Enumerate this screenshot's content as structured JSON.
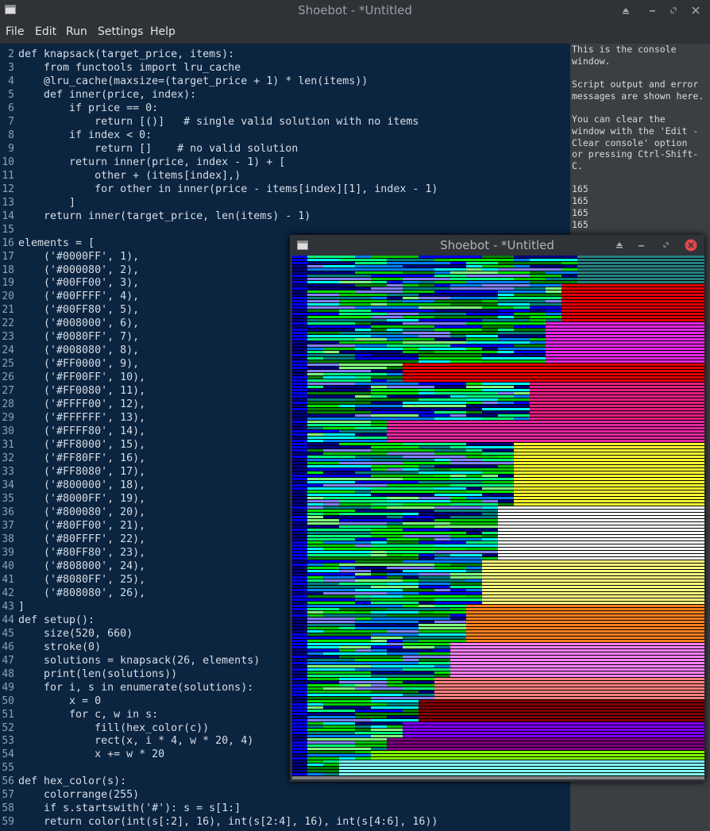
{
  "window": {
    "title": "Shoebot - *Untitled"
  },
  "menu": [
    "File",
    "Edit",
    "Run",
    "Settings",
    "Help"
  ],
  "editor": {
    "lines": [
      {
        "number": 2,
        "text": "def knapsack(target_price, items):"
      },
      {
        "number": 3,
        "text": "    from functools import lru_cache"
      },
      {
        "number": 4,
        "text": "    @lru_cache(maxsize=(target_price + 1) * len(items))"
      },
      {
        "number": 5,
        "text": "    def inner(price, index):"
      },
      {
        "number": 6,
        "text": "        if price == 0:"
      },
      {
        "number": 7,
        "text": "            return [()]   # single valid solution with no items"
      },
      {
        "number": 8,
        "text": "        if index < 0:"
      },
      {
        "number": 9,
        "text": "            return []    # no valid solution"
      },
      {
        "number": 10,
        "text": "        return inner(price, index - 1) + ["
      },
      {
        "number": 11,
        "text": "            other + (items[index],)"
      },
      {
        "number": 12,
        "text": "            for other in inner(price - items[index][1], index - 1)"
      },
      {
        "number": 13,
        "text": "        ]"
      },
      {
        "number": 14,
        "text": "    return inner(target_price, len(items) - 1)"
      },
      {
        "number": 15
      },
      {
        "number": 16,
        "text": "elements = ["
      },
      {
        "number": 17,
        "text": "    ('#0000FF', 1),"
      },
      {
        "number": 18,
        "text": "    ('#000080', 2),"
      },
      {
        "number": 19,
        "text": "    ('#00FF00', 3),"
      },
      {
        "number": 20,
        "text": "    ('#00FFFF', 4),"
      },
      {
        "number": 21,
        "text": "    ('#00FF80', 5),"
      },
      {
        "number": 22,
        "text": "    ('#008000', 6),"
      },
      {
        "number": 23,
        "text": "    ('#0080FF', 7),"
      },
      {
        "number": 24,
        "text": "    ('#008080', 8),"
      },
      {
        "number": 25,
        "text": "    ('#FF0000', 9),"
      },
      {
        "number": 26,
        "text": "    ('#FF00FF', 10),"
      },
      {
        "number": 27,
        "text": "    ('#FF0080', 11),"
      },
      {
        "number": 28,
        "text": "    ('#FFFF00', 12),"
      },
      {
        "number": 29,
        "text": "    ('#FFFFFF', 13),"
      },
      {
        "number": 30,
        "text": "    ('#FFFF80', 14),"
      },
      {
        "number": 31,
        "text": "    ('#FF8000', 15),"
      },
      {
        "number": 32,
        "text": "    ('#FF80FF', 16),"
      },
      {
        "number": 33,
        "text": "    ('#FF8080', 17),"
      },
      {
        "number": 34,
        "text": "    ('#800000', 18),"
      },
      {
        "number": 35,
        "text": "    ('#8000FF', 19),"
      },
      {
        "number": 36,
        "text": "    ('#800080', 20),"
      },
      {
        "number": 37,
        "text": "    ('#80FF00', 21),"
      },
      {
        "number": 38,
        "text": "    ('#80FFFF', 22),"
      },
      {
        "number": 39,
        "text": "    ('#80FF80', 23),"
      },
      {
        "number": 40,
        "text": "    ('#808000', 24),"
      },
      {
        "number": 41,
        "text": "    ('#8080FF', 25),"
      },
      {
        "number": 42,
        "text": "    ('#808080', 26),"
      },
      {
        "number": 43,
        "text": "]"
      },
      {
        "number": 44,
        "text": "def setup():"
      },
      {
        "number": 45,
        "text": "    size(520, 660)"
      },
      {
        "number": 46,
        "text": "    stroke(0)"
      },
      {
        "number": 47,
        "text": "    solutions = knapsack(26, elements)"
      },
      {
        "number": 48,
        "text": "    print(len(solutions))"
      },
      {
        "number": 49,
        "text": "    for i, s in enumerate(solutions):"
      },
      {
        "number": 50,
        "text": "        x = 0"
      },
      {
        "number": 51,
        "text": "        for c, w in s:"
      },
      {
        "number": 52,
        "text": "            fill(hex_color(c))"
      },
      {
        "number": 53,
        "text": "            rect(x, i * 4, w * 20, 4)"
      },
      {
        "number": 54,
        "text": "            x += w * 20"
      },
      {
        "number": 55
      },
      {
        "number": 56,
        "text": "def hex_color(s):"
      },
      {
        "number": 57,
        "text": "    colorrange(255)"
      },
      {
        "number": 58,
        "text": "    if s.startswith('#'): s = s[1:]"
      },
      {
        "number": 59,
        "text": "    return color(int(s[:2], 16), int(s[2:4], 16), int(s[4:6], 16))"
      }
    ]
  },
  "console": {
    "paragraphs": [
      [
        "This is the console",
        "window."
      ],
      [
        "Script output and error",
        "messages are shown here."
      ],
      [
        "You can clear the",
        "window with the 'Edit -",
        "Clear console' option",
        "or pressing Ctrl-Shift-",
        "C."
      ],
      [
        "165",
        "165",
        "165",
        "165"
      ]
    ]
  },
  "output_window": {
    "title": "Shoebot - *Untitled"
  }
}
